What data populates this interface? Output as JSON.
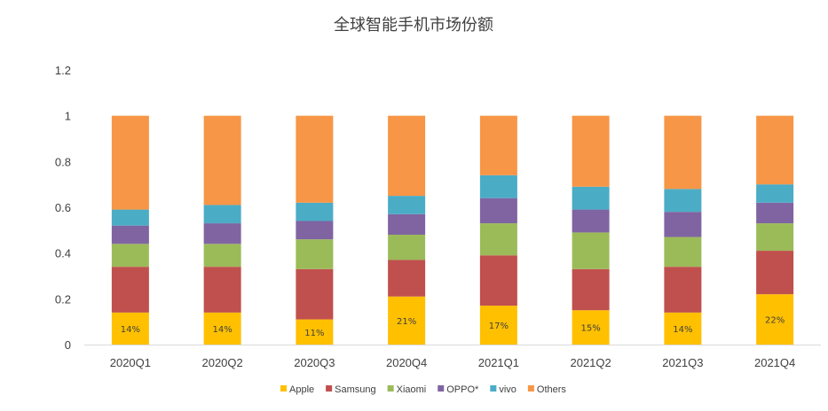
{
  "chart_data": {
    "type": "bar",
    "stacked": true,
    "title": "全球智能手机市场份额",
    "xlabel": "",
    "ylabel": "",
    "categories": [
      "2020Q1",
      "2020Q2",
      "2020Q3",
      "2020Q4",
      "2021Q1",
      "2021Q2",
      "2021Q3",
      "2021Q4"
    ],
    "ylim": [
      0,
      1.2
    ],
    "yticks": [
      "0",
      "0.2",
      "0.4",
      "0.6",
      "0.8",
      "1",
      "1.2"
    ],
    "grid": false,
    "legend_position": "bottom",
    "series": [
      {
        "name": "Apple",
        "color": "#FFC000",
        "values": [
          0.14,
          0.14,
          0.11,
          0.21,
          0.17,
          0.15,
          0.14,
          0.22
        ],
        "data_labels": [
          "14%",
          "14%",
          "11%",
          "21%",
          "17%",
          "15%",
          "14%",
          "22%"
        ]
      },
      {
        "name": "Samsung",
        "color": "#C0504D",
        "values": [
          0.2,
          0.2,
          0.22,
          0.16,
          0.22,
          0.18,
          0.2,
          0.19
        ]
      },
      {
        "name": "Xiaomi",
        "color": "#9BBB59",
        "values": [
          0.1,
          0.1,
          0.13,
          0.11,
          0.14,
          0.16,
          0.13,
          0.12
        ]
      },
      {
        "name": "OPPO*",
        "color": "#8064A2",
        "values": [
          0.08,
          0.09,
          0.08,
          0.09,
          0.11,
          0.1,
          0.11,
          0.09
        ]
      },
      {
        "name": "vivo",
        "color": "#4BACC6",
        "values": [
          0.07,
          0.08,
          0.08,
          0.08,
          0.1,
          0.1,
          0.1,
          0.08
        ]
      },
      {
        "name": "Others",
        "color": "#F79646",
        "values": [
          0.41,
          0.39,
          0.38,
          0.35,
          0.26,
          0.31,
          0.32,
          0.3
        ]
      }
    ]
  }
}
